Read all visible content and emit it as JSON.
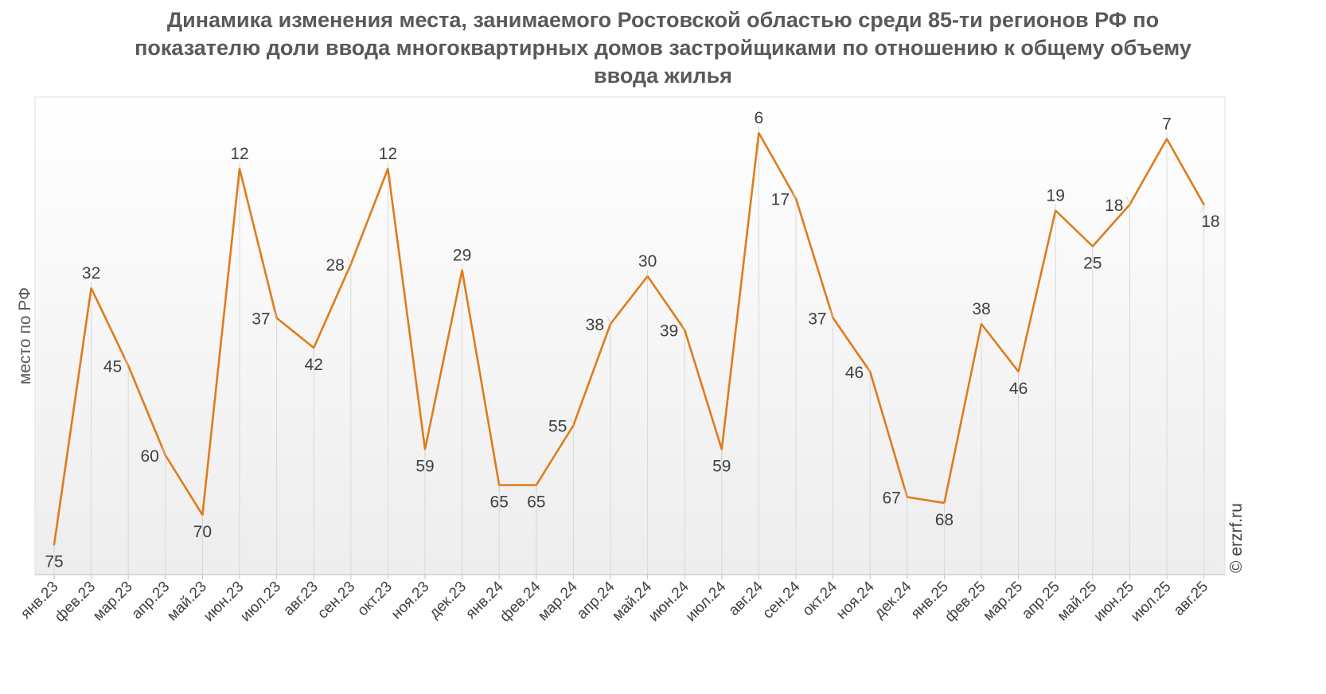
{
  "chart_data": {
    "type": "line",
    "title": "Динамика изменения места, занимаемого Ростовской областью среди 85-ти регионов РФ по показателю доли ввода многоквартирных домов застройщиками по отношению к общему объему ввода жилья",
    "ylabel": "место по РФ",
    "xlabel": "",
    "y_axis": "inverted",
    "ylim": [
      80,
      0
    ],
    "grid": "vertical",
    "categories": [
      "янв.23",
      "фев.23",
      "мар.23",
      "апр.23",
      "май.23",
      "июн.23",
      "июл.23",
      "авг.23",
      "сен.23",
      "окт.23",
      "ноя.23",
      "дек.23",
      "янв.24",
      "фев.24",
      "мар.24",
      "апр.24",
      "май.24",
      "июн.24",
      "июл.24",
      "авг.24",
      "сен.24",
      "окт.24",
      "ноя.24",
      "дек.24",
      "янв.25",
      "фев.25",
      "мар.25",
      "апр.25",
      "май.25",
      "июн.25",
      "июл.25",
      "авг.25"
    ],
    "values": [
      75,
      32,
      45,
      60,
      70,
      12,
      37,
      42,
      28,
      12,
      59,
      29,
      65,
      65,
      55,
      38,
      30,
      39,
      59,
      6,
      17,
      37,
      46,
      67,
      68,
      38,
      46,
      19,
      25,
      18,
      7,
      18
    ],
    "line_color": "#e07b1a",
    "credit": "© erzrf.ru"
  }
}
